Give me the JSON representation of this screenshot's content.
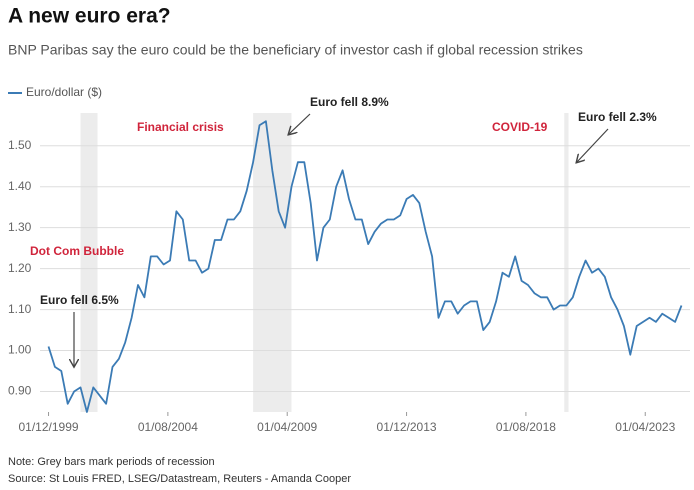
{
  "chart_data": {
    "type": "line",
    "title": "A new euro era?",
    "subtitle": "BNP Paribas say the euro could be the beneficiary of investor cash if global recession strikes",
    "note": "Note: Grey bars mark periods of recession",
    "source": "Source: St Louis FRED, LSEG/Datastream, Reuters - Amanda Cooper",
    "annotations": [
      "Dot Com Bubble",
      "Financial crisis",
      "COVID-19",
      "Euro fell 6.5%",
      "Euro fell 8.9%",
      "Euro fell 2.3%"
    ],
    "recessions": [
      [
        "01/03/2001",
        "01/11/2001"
      ],
      [
        "01/12/2007",
        "01/06/2009"
      ],
      [
        "01/02/2020",
        "01/04/2020"
      ]
    ],
    "xlim": [
      "01/08/1999",
      "01/01/2025"
    ],
    "xticks": [
      "01/12/1999",
      "01/08/2004",
      "01/04/2009",
      "01/12/2013",
      "01/08/2018",
      "01/04/2023"
    ],
    "ylim": [
      0.85,
      1.58
    ],
    "yticks": [
      {
        "value": 0.9,
        "label": "0.90"
      },
      {
        "value": 1.0,
        "label": "1.00"
      },
      {
        "value": 1.1,
        "label": "1.10"
      },
      {
        "value": 1.2,
        "label": "1.20"
      },
      {
        "value": 1.3,
        "label": "1.30"
      },
      {
        "value": 1.4,
        "label": "1.40"
      },
      {
        "value": 1.5,
        "label": "1.50"
      }
    ],
    "grid": true,
    "x": [
      "01/12/1999",
      "01/03/2000",
      "01/06/2000",
      "01/09/2000",
      "01/12/2000",
      "01/03/2001",
      "01/06/2001",
      "01/09/2001",
      "01/12/2001",
      "01/03/2002",
      "01/06/2002",
      "01/09/2002",
      "01/12/2002",
      "01/03/2003",
      "01/06/2003",
      "01/09/2003",
      "01/12/2003",
      "01/03/2004",
      "01/06/2004",
      "01/09/2004",
      "01/12/2004",
      "01/03/2005",
      "01/06/2005",
      "01/09/2005",
      "01/12/2005",
      "01/03/2006",
      "01/06/2006",
      "01/09/2006",
      "01/12/2006",
      "01/03/2007",
      "01/06/2007",
      "01/09/2007",
      "01/12/2007",
      "01/03/2008",
      "01/06/2008",
      "01/09/2008",
      "01/12/2008",
      "01/03/2009",
      "01/06/2009",
      "01/09/2009",
      "01/12/2009",
      "01/03/2010",
      "01/06/2010",
      "01/09/2010",
      "01/12/2010",
      "01/03/2011",
      "01/06/2011",
      "01/09/2011",
      "01/12/2011",
      "01/03/2012",
      "01/06/2012",
      "01/09/2012",
      "01/12/2012",
      "01/03/2013",
      "01/06/2013",
      "01/09/2013",
      "01/12/2013",
      "01/03/2014",
      "01/06/2014",
      "01/09/2014",
      "01/12/2014",
      "01/03/2015",
      "01/06/2015",
      "01/09/2015",
      "01/12/2015",
      "01/03/2016",
      "01/06/2016",
      "01/09/2016",
      "01/12/2016",
      "01/03/2017",
      "01/06/2017",
      "01/09/2017",
      "01/12/2017",
      "01/03/2018",
      "01/06/2018",
      "01/09/2018",
      "01/12/2018",
      "01/03/2019",
      "01/06/2019",
      "01/09/2019",
      "01/12/2019",
      "01/03/2020",
      "01/06/2020",
      "01/09/2020",
      "01/12/2020",
      "01/03/2021",
      "01/06/2021",
      "01/09/2021",
      "01/12/2021",
      "01/03/2022",
      "01/06/2022",
      "01/09/2022",
      "01/12/2022",
      "01/03/2023",
      "01/06/2023",
      "01/09/2023",
      "01/12/2023",
      "01/03/2024",
      "01/06/2024",
      "01/09/2024"
    ],
    "series": [
      {
        "name": "Euro/dollar ($)",
        "color": "#3b7bb5",
        "values": [
          1.01,
          0.96,
          0.95,
          0.87,
          0.9,
          0.91,
          0.85,
          0.91,
          0.89,
          0.87,
          0.96,
          0.98,
          1.02,
          1.08,
          1.16,
          1.13,
          1.23,
          1.23,
          1.21,
          1.22,
          1.34,
          1.32,
          1.22,
          1.22,
          1.19,
          1.2,
          1.27,
          1.27,
          1.32,
          1.32,
          1.34,
          1.39,
          1.46,
          1.55,
          1.56,
          1.44,
          1.34,
          1.3,
          1.4,
          1.46,
          1.46,
          1.36,
          1.22,
          1.3,
          1.32,
          1.4,
          1.44,
          1.37,
          1.32,
          1.32,
          1.26,
          1.29,
          1.31,
          1.32,
          1.32,
          1.33,
          1.37,
          1.38,
          1.36,
          1.29,
          1.23,
          1.08,
          1.12,
          1.12,
          1.09,
          1.11,
          1.12,
          1.12,
          1.05,
          1.07,
          1.12,
          1.19,
          1.18,
          1.23,
          1.17,
          1.16,
          1.14,
          1.13,
          1.13,
          1.1,
          1.11,
          1.11,
          1.13,
          1.18,
          1.22,
          1.19,
          1.2,
          1.18,
          1.13,
          1.1,
          1.06,
          0.99,
          1.06,
          1.07,
          1.08,
          1.07,
          1.09,
          1.08,
          1.07,
          1.11
        ]
      }
    ]
  }
}
